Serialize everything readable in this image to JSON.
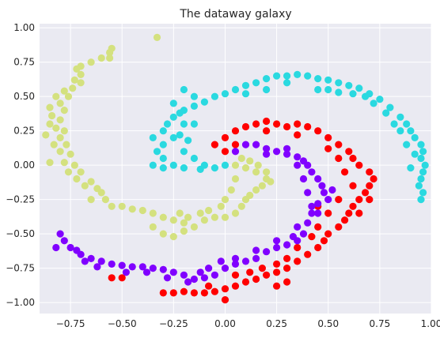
{
  "chart_data": {
    "type": "scatter",
    "title": "The dataway galaxy",
    "xlabel": "",
    "ylabel": "",
    "xlim": [
      -0.9,
      1.0
    ],
    "ylim": [
      -1.08,
      1.03
    ],
    "grid": true,
    "background": "#eaeaf2",
    "xticks": [
      -0.75,
      -0.5,
      -0.25,
      0.0,
      0.25,
      0.5,
      0.75,
      1.0
    ],
    "xtick_labels": [
      "−0.75",
      "−0.50",
      "−0.25",
      "0.00",
      "0.25",
      "0.50",
      "0.75",
      "1.00"
    ],
    "yticks": [
      1.0,
      0.75,
      0.5,
      0.25,
      0.0,
      -0.25,
      -0.5,
      -0.75,
      -1.0
    ],
    "ytick_labels": [
      "1.00",
      "0.75",
      "0.50",
      "0.25",
      "0.00",
      "−0.25",
      "−0.50",
      "−0.75",
      "−1.00"
    ],
    "series": [
      {
        "color": "#d4e17f",
        "points": [
          [
            -0.33,
            0.93
          ],
          [
            -0.55,
            0.85
          ],
          [
            -0.56,
            0.82
          ],
          [
            -0.6,
            0.78
          ],
          [
            -0.56,
            0.78
          ],
          [
            -0.65,
            0.75
          ],
          [
            -0.7,
            0.72
          ],
          [
            -0.72,
            0.7
          ],
          [
            -0.7,
            0.66
          ],
          [
            -0.73,
            0.62
          ],
          [
            -0.7,
            0.6
          ],
          [
            -0.74,
            0.56
          ],
          [
            -0.78,
            0.54
          ],
          [
            -0.82,
            0.5
          ],
          [
            -0.76,
            0.5
          ],
          [
            -0.8,
            0.45
          ],
          [
            -0.85,
            0.42
          ],
          [
            -0.78,
            0.4
          ],
          [
            -0.84,
            0.36
          ],
          [
            -0.8,
            0.33
          ],
          [
            -0.85,
            0.3
          ],
          [
            -0.82,
            0.27
          ],
          [
            -0.78,
            0.25
          ],
          [
            -0.87,
            0.22
          ],
          [
            -0.8,
            0.2
          ],
          [
            -0.83,
            0.15
          ],
          [
            -0.77,
            0.15
          ],
          [
            -0.8,
            0.1
          ],
          [
            -0.75,
            0.08
          ],
          [
            -0.85,
            0.02
          ],
          [
            -0.78,
            0.02
          ],
          [
            -0.73,
            0.0
          ],
          [
            -0.76,
            -0.05
          ],
          [
            -0.7,
            -0.05
          ],
          [
            -0.72,
            -0.1
          ],
          [
            -0.65,
            -0.12
          ],
          [
            -0.68,
            -0.15
          ],
          [
            -0.62,
            -0.17
          ],
          [
            -0.6,
            -0.2
          ],
          [
            -0.65,
            -0.25
          ],
          [
            -0.58,
            -0.25
          ],
          [
            -0.55,
            -0.3
          ],
          [
            -0.5,
            -0.3
          ],
          [
            -0.45,
            -0.32
          ],
          [
            -0.4,
            -0.33
          ],
          [
            -0.35,
            -0.35
          ],
          [
            -0.3,
            -0.38
          ],
          [
            -0.25,
            -0.4
          ],
          [
            -0.2,
            -0.42
          ],
          [
            -0.15,
            -0.45
          ],
          [
            -0.35,
            -0.45
          ],
          [
            -0.3,
            -0.5
          ],
          [
            -0.25,
            -0.52
          ],
          [
            -0.2,
            -0.48
          ],
          [
            -0.1,
            -0.4
          ],
          [
            -0.05,
            -0.38
          ],
          [
            0.0,
            -0.38
          ],
          [
            0.05,
            -0.35
          ],
          [
            0.08,
            -0.3
          ],
          [
            0.1,
            -0.25
          ],
          [
            0.12,
            -0.22
          ],
          [
            0.15,
            -0.18
          ],
          [
            0.18,
            -0.15
          ],
          [
            0.2,
            -0.1
          ],
          [
            0.15,
            -0.05
          ],
          [
            0.1,
            -0.02
          ],
          [
            0.05,
            0.0
          ],
          [
            0.08,
            0.05
          ],
          [
            0.12,
            0.03
          ],
          [
            0.16,
            0.0
          ],
          [
            0.2,
            -0.05
          ],
          [
            0.22,
            -0.12
          ],
          [
            0.05,
            -0.1
          ],
          [
            0.03,
            -0.18
          ],
          [
            0.0,
            -0.25
          ],
          [
            -0.02,
            -0.3
          ],
          [
            -0.08,
            -0.33
          ],
          [
            -0.12,
            -0.35
          ],
          [
            -0.18,
            -0.38
          ],
          [
            -0.22,
            -0.35
          ]
        ]
      },
      {
        "color": "#2ad9e0",
        "points": [
          [
            -0.35,
            0.0
          ],
          [
            -0.3,
            0.05
          ],
          [
            -0.33,
            0.1
          ],
          [
            -0.3,
            0.15
          ],
          [
            -0.35,
            0.2
          ],
          [
            -0.3,
            0.25
          ],
          [
            -0.28,
            0.3
          ],
          [
            -0.25,
            0.35
          ],
          [
            -0.22,
            0.38
          ],
          [
            -0.2,
            0.4
          ],
          [
            -0.15,
            0.43
          ],
          [
            -0.1,
            0.46
          ],
          [
            -0.05,
            0.5
          ],
          [
            0.0,
            0.52
          ],
          [
            0.05,
            0.55
          ],
          [
            0.1,
            0.58
          ],
          [
            0.15,
            0.6
          ],
          [
            0.2,
            0.63
          ],
          [
            0.25,
            0.65
          ],
          [
            0.3,
            0.65
          ],
          [
            0.35,
            0.66
          ],
          [
            0.4,
            0.65
          ],
          [
            0.45,
            0.63
          ],
          [
            0.5,
            0.62
          ],
          [
            0.55,
            0.6
          ],
          [
            0.6,
            0.58
          ],
          [
            0.65,
            0.56
          ],
          [
            0.7,
            0.52
          ],
          [
            0.75,
            0.48
          ],
          [
            0.8,
            0.42
          ],
          [
            0.85,
            0.35
          ],
          [
            0.88,
            0.3
          ],
          [
            0.9,
            0.25
          ],
          [
            0.92,
            0.2
          ],
          [
            0.95,
            0.15
          ],
          [
            0.96,
            0.1
          ],
          [
            0.95,
            0.05
          ],
          [
            0.97,
            0.0
          ],
          [
            0.96,
            -0.05
          ],
          [
            0.95,
            -0.1
          ],
          [
            0.94,
            -0.15
          ],
          [
            0.96,
            -0.2
          ],
          [
            0.95,
            -0.25
          ],
          [
            -0.2,
            0.55
          ],
          [
            -0.15,
            0.5
          ],
          [
            -0.25,
            0.45
          ],
          [
            -0.2,
            0.3
          ],
          [
            -0.25,
            0.2
          ],
          [
            -0.2,
            0.1
          ],
          [
            -0.15,
            0.05
          ],
          [
            -0.1,
            0.0
          ],
          [
            -0.05,
            -0.02
          ],
          [
            0.0,
            0.0
          ],
          [
            -0.12,
            -0.03
          ],
          [
            -0.2,
            -0.02
          ],
          [
            -0.25,
            0.0
          ],
          [
            -0.3,
            -0.02
          ],
          [
            -0.18,
            0.18
          ],
          [
            -0.22,
            0.22
          ],
          [
            -0.15,
            0.3
          ],
          [
            0.1,
            0.52
          ],
          [
            0.2,
            0.55
          ],
          [
            0.3,
            0.6
          ],
          [
            0.45,
            0.55
          ],
          [
            0.5,
            0.55
          ],
          [
            0.55,
            0.53
          ],
          [
            0.62,
            0.52
          ],
          [
            0.68,
            0.5
          ],
          [
            0.72,
            0.45
          ],
          [
            0.78,
            0.38
          ],
          [
            0.82,
            0.3
          ],
          [
            0.85,
            0.25
          ],
          [
            0.88,
            0.15
          ],
          [
            0.92,
            0.08
          ],
          [
            0.9,
            -0.02
          ]
        ]
      },
      {
        "color": "#ff0000",
        "points": [
          [
            -0.05,
            0.15
          ],
          [
            0.0,
            0.2
          ],
          [
            0.05,
            0.25
          ],
          [
            0.1,
            0.28
          ],
          [
            0.15,
            0.3
          ],
          [
            0.2,
            0.32
          ],
          [
            0.25,
            0.3
          ],
          [
            0.3,
            0.28
          ],
          [
            0.35,
            0.3
          ],
          [
            0.4,
            0.28
          ],
          [
            0.45,
            0.25
          ],
          [
            0.5,
            0.2
          ],
          [
            0.55,
            0.15
          ],
          [
            0.6,
            0.1
          ],
          [
            0.62,
            0.05
          ],
          [
            0.65,
            0.0
          ],
          [
            0.7,
            -0.05
          ],
          [
            0.72,
            -0.1
          ],
          [
            0.7,
            -0.15
          ],
          [
            0.68,
            -0.2
          ],
          [
            0.65,
            -0.25
          ],
          [
            0.62,
            -0.3
          ],
          [
            0.6,
            -0.35
          ],
          [
            0.58,
            -0.4
          ],
          [
            0.55,
            -0.45
          ],
          [
            0.5,
            -0.5
          ],
          [
            0.48,
            -0.55
          ],
          [
            0.45,
            -0.6
          ],
          [
            0.4,
            -0.65
          ],
          [
            0.35,
            -0.7
          ],
          [
            0.3,
            -0.75
          ],
          [
            0.25,
            -0.78
          ],
          [
            0.2,
            -0.8
          ],
          [
            0.15,
            -0.83
          ],
          [
            0.1,
            -0.85
          ],
          [
            0.05,
            -0.88
          ],
          [
            0.0,
            -0.9
          ],
          [
            -0.05,
            -0.92
          ],
          [
            -0.1,
            -0.93
          ],
          [
            -0.15,
            -0.93
          ],
          [
            -0.2,
            -0.92
          ],
          [
            -0.25,
            -0.93
          ],
          [
            -0.3,
            -0.93
          ],
          [
            -0.5,
            -0.82
          ],
          [
            -0.55,
            -0.82
          ],
          [
            0.0,
            0.1
          ],
          [
            0.05,
            0.15
          ],
          [
            0.2,
            0.25
          ],
          [
            0.35,
            0.22
          ],
          [
            0.5,
            0.12
          ],
          [
            0.55,
            0.05
          ],
          [
            0.58,
            -0.05
          ],
          [
            0.62,
            -0.15
          ],
          [
            0.55,
            -0.25
          ],
          [
            0.5,
            -0.35
          ],
          [
            0.45,
            -0.45
          ],
          [
            0.42,
            -0.52
          ],
          [
            0.35,
            -0.6
          ],
          [
            0.3,
            -0.68
          ],
          [
            0.25,
            -0.72
          ],
          [
            0.18,
            -0.75
          ],
          [
            0.12,
            -0.78
          ],
          [
            0.05,
            -0.8
          ],
          [
            0.0,
            -0.98
          ],
          [
            -0.08,
            -0.88
          ],
          [
            0.25,
            -0.88
          ],
          [
            0.3,
            -0.85
          ],
          [
            0.45,
            -0.3
          ],
          [
            0.65,
            -0.35
          ],
          [
            0.7,
            -0.25
          ]
        ]
      },
      {
        "color": "#8000ff",
        "points": [
          [
            0.05,
            0.1
          ],
          [
            0.1,
            0.15
          ],
          [
            0.15,
            0.15
          ],
          [
            0.2,
            0.12
          ],
          [
            0.25,
            0.1
          ],
          [
            0.3,
            0.08
          ],
          [
            0.35,
            0.06
          ],
          [
            0.38,
            0.03
          ],
          [
            0.4,
            0.0
          ],
          [
            0.42,
            -0.05
          ],
          [
            0.45,
            -0.1
          ],
          [
            0.47,
            -0.15
          ],
          [
            0.48,
            -0.2
          ],
          [
            0.5,
            -0.25
          ],
          [
            0.45,
            -0.28
          ],
          [
            0.42,
            -0.35
          ],
          [
            0.4,
            -0.42
          ],
          [
            0.38,
            -0.5
          ],
          [
            0.35,
            -0.55
          ],
          [
            0.3,
            -0.58
          ],
          [
            0.25,
            -0.6
          ],
          [
            0.2,
            -0.63
          ],
          [
            0.15,
            -0.68
          ],
          [
            0.1,
            -0.7
          ],
          [
            0.05,
            -0.72
          ],
          [
            0.0,
            -0.75
          ],
          [
            -0.05,
            -0.8
          ],
          [
            -0.1,
            -0.82
          ],
          [
            -0.15,
            -0.83
          ],
          [
            -0.2,
            -0.8
          ],
          [
            -0.25,
            -0.78
          ],
          [
            -0.3,
            -0.76
          ],
          [
            -0.35,
            -0.75
          ],
          [
            -0.4,
            -0.74
          ],
          [
            -0.45,
            -0.74
          ],
          [
            -0.5,
            -0.73
          ],
          [
            -0.55,
            -0.72
          ],
          [
            -0.6,
            -0.7
          ],
          [
            -0.65,
            -0.68
          ],
          [
            -0.7,
            -0.65
          ],
          [
            -0.75,
            -0.6
          ],
          [
            -0.78,
            -0.55
          ],
          [
            -0.8,
            -0.5
          ],
          [
            -0.82,
            -0.6
          ],
          [
            -0.72,
            -0.62
          ],
          [
            0.2,
            0.08
          ],
          [
            0.3,
            0.12
          ],
          [
            0.35,
            0.0
          ],
          [
            0.38,
            -0.1
          ],
          [
            0.4,
            -0.2
          ],
          [
            0.42,
            -0.3
          ],
          [
            0.35,
            -0.45
          ],
          [
            0.33,
            -0.52
          ],
          [
            0.25,
            -0.55
          ],
          [
            0.15,
            -0.62
          ],
          [
            0.05,
            -0.68
          ],
          [
            -0.02,
            -0.7
          ],
          [
            -0.08,
            -0.75
          ],
          [
            -0.12,
            -0.78
          ],
          [
            -0.18,
            -0.85
          ],
          [
            -0.28,
            -0.82
          ],
          [
            -0.38,
            -0.78
          ],
          [
            -0.48,
            -0.78
          ],
          [
            -0.62,
            -0.74
          ],
          [
            -0.68,
            -0.7
          ],
          [
            0.45,
            -0.35
          ],
          [
            0.52,
            -0.18
          ]
        ]
      }
    ]
  }
}
